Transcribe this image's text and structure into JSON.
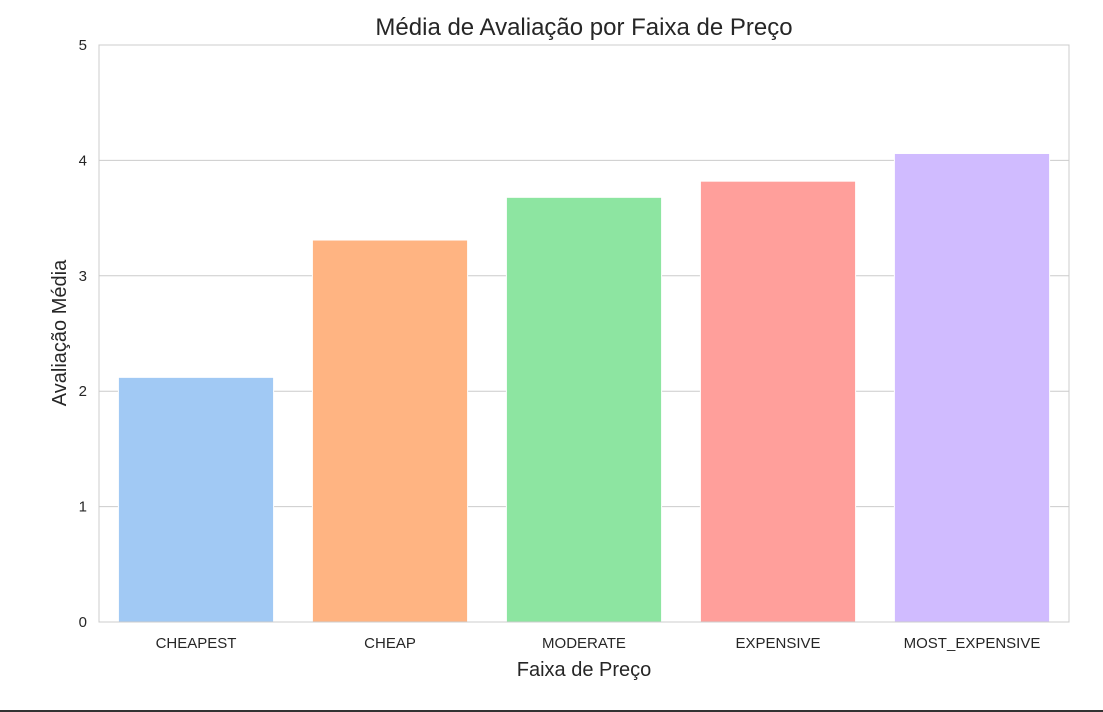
{
  "chart_data": {
    "type": "bar",
    "title": "Média de Avaliação por Faixa de Preço",
    "xlabel": "Faixa de Preço",
    "ylabel": "Avaliação Média",
    "categories": [
      "CHEAPEST",
      "CHEAP",
      "MODERATE",
      "EXPENSIVE",
      "MOST_EXPENSIVE"
    ],
    "values": [
      2.12,
      3.31,
      3.68,
      3.82,
      4.06
    ],
    "colors": [
      "#a1c9f4",
      "#ffb482",
      "#8de5a1",
      "#ff9f9b",
      "#d0bbff"
    ],
    "ylim": [
      0,
      5
    ],
    "yticks": [
      "0",
      "1",
      "2",
      "3",
      "4",
      "5"
    ],
    "grid": "y-axis horizontal lines",
    "legend": "none"
  }
}
